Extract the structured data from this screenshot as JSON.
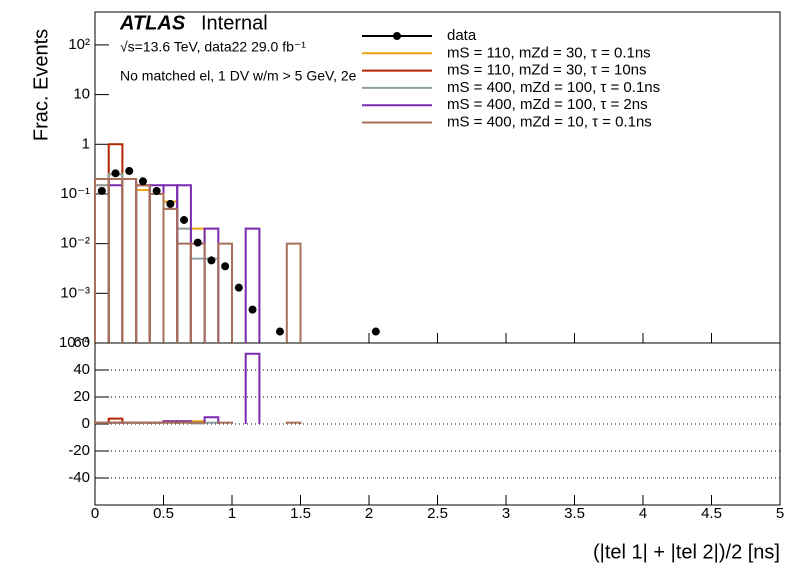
{
  "chart_data": [
    {
      "type": "histogram",
      "title": "ATLAS",
      "title_suffix": "Internal",
      "subtitle": "√s=13.6 TeV, data22 29.0 fb⁻¹",
      "annotation": "No matched el, 1 DV w/m > 5 GeV, 2e",
      "ylabel": "Frac. Events",
      "log_y": true,
      "bins": [
        0,
        0.1,
        0.2,
        0.3,
        0.4,
        0.5,
        0.6,
        0.7,
        0.8,
        0.9,
        1,
        1.1,
        1.2,
        1.3,
        1.4,
        1.5,
        1.6,
        1.7,
        1.8,
        1.9,
        2,
        2.1
      ],
      "xlim": [
        0,
        5
      ],
      "xticks": [
        0,
        0.5,
        1,
        1.5,
        2,
        2.5,
        3,
        3.5,
        4,
        4.5,
        5
      ],
      "ylim": [
        0.0001,
        460
      ],
      "yticks": [
        {
          "value": 100,
          "label": "10²"
        },
        10,
        1,
        {
          "value": 0.1,
          "label": "10⁻¹"
        },
        {
          "value": 0.01,
          "label": "10⁻²"
        },
        {
          "value": 0.001,
          "label": "10⁻³"
        },
        {
          "value": 0.0001,
          "label": "10⁻⁴"
        }
      ],
      "points": {
        "name": "data",
        "color": "#000000",
        "values": [
          0.115,
          0.26,
          0.29,
          0.18,
          0.115,
          0.063,
          0.03,
          0.0105,
          0.0046,
          0.0035,
          0.0013,
          0.00047,
          null,
          0.00017,
          null,
          null,
          null,
          null,
          null,
          null,
          0.00017
        ]
      },
      "series": [
        {
          "name": "mS = 110, mZd = 30, τ = 0.1ns",
          "color": "#eba40f",
          "values": [
            0.15,
            0.25,
            0.2,
            0.12,
            0.1,
            0.07,
            0.02,
            0.02,
            null,
            null,
            null,
            null,
            null,
            null,
            null,
            null,
            null,
            null,
            null,
            null,
            null
          ]
        },
        {
          "name": "mS = 110, mZd = 30, τ = 10ns",
          "color": "#b42400",
          "values": [
            null,
            1,
            null,
            null,
            null,
            null,
            null,
            null,
            null,
            null,
            null,
            null,
            null,
            null,
            null,
            null,
            null,
            null,
            null,
            null,
            null
          ]
        },
        {
          "name": "mS = 400, mZd = 100, τ = 0.1ns",
          "color": "#8ea0a8",
          "values": [
            0.15,
            0.25,
            0.2,
            0.15,
            0.1,
            0.05,
            0.02,
            0.005,
            0.005,
            null,
            null,
            null,
            null,
            null,
            null,
            null,
            null,
            null,
            null,
            null,
            null
          ]
        },
        {
          "name": "mS = 400, mZd = 100, τ = 2ns",
          "color": "#7a2ab0",
          "values": [
            null,
            0.15,
            0.2,
            0.15,
            0.15,
            0.15,
            0.15,
            null,
            0.02,
            null,
            null,
            0.02,
            null,
            null,
            null,
            null,
            null,
            null,
            null,
            null,
            null
          ]
        },
        {
          "name": "mS = 400, mZd = 10, τ = 0.1ns",
          "color": "#a8705a",
          "values": [
            0.2,
            0.2,
            0.2,
            0.15,
            0.1,
            0.05,
            0.01,
            0.01,
            null,
            0.01,
            null,
            null,
            null,
            null,
            0.01,
            null,
            null,
            null,
            null,
            null,
            null
          ]
        }
      ]
    },
    {
      "type": "histogram",
      "xlabel": "(|tel 1| + |tel 2|)/2 [ns]",
      "bins": [
        0,
        0.1,
        0.2,
        0.3,
        0.4,
        0.5,
        0.6,
        0.7,
        0.8,
        0.9,
        1,
        1.1,
        1.2,
        1.3,
        1.4,
        1.5,
        1.6,
        1.7,
        1.8,
        1.9,
        2,
        2.1
      ],
      "xlim": [
        0,
        5
      ],
      "xticks": [
        0,
        0.5,
        1,
        1.5,
        2,
        2.5,
        3,
        3.5,
        4,
        4.5,
        5
      ],
      "ylim": [
        -60,
        60
      ],
      "yticks": [
        -40,
        -20,
        0,
        20,
        40,
        60
      ],
      "grid": true,
      "series": [
        {
          "color": "#eba40f",
          "values": [
            1,
            1,
            1,
            1,
            1,
            2,
            2,
            2,
            null,
            null,
            null,
            null,
            null,
            null,
            null,
            null,
            null,
            null,
            null,
            null,
            null
          ]
        },
        {
          "color": "#b42400",
          "values": [
            null,
            4,
            null,
            null,
            null,
            null,
            null,
            null,
            null,
            null,
            null,
            null,
            null,
            null,
            null,
            null,
            null,
            null,
            null,
            null,
            null
          ]
        },
        {
          "color": "#8ea0a8",
          "values": [
            1,
            1,
            1,
            1,
            1,
            1,
            1,
            0.5,
            1,
            null,
            null,
            null,
            null,
            null,
            null,
            null,
            null,
            null,
            null,
            null,
            null
          ]
        },
        {
          "color": "#7a2ab0",
          "values": [
            null,
            1,
            1,
            1,
            1,
            2,
            2,
            null,
            5,
            null,
            null,
            52,
            null,
            null,
            null,
            null,
            null,
            null,
            null,
            null,
            null
          ]
        },
        {
          "color": "#a8705a",
          "values": [
            1,
            1,
            1,
            1,
            1,
            1,
            1,
            1,
            null,
            1,
            null,
            null,
            null,
            null,
            1,
            null,
            null,
            null,
            null,
            null,
            null
          ]
        }
      ]
    }
  ]
}
